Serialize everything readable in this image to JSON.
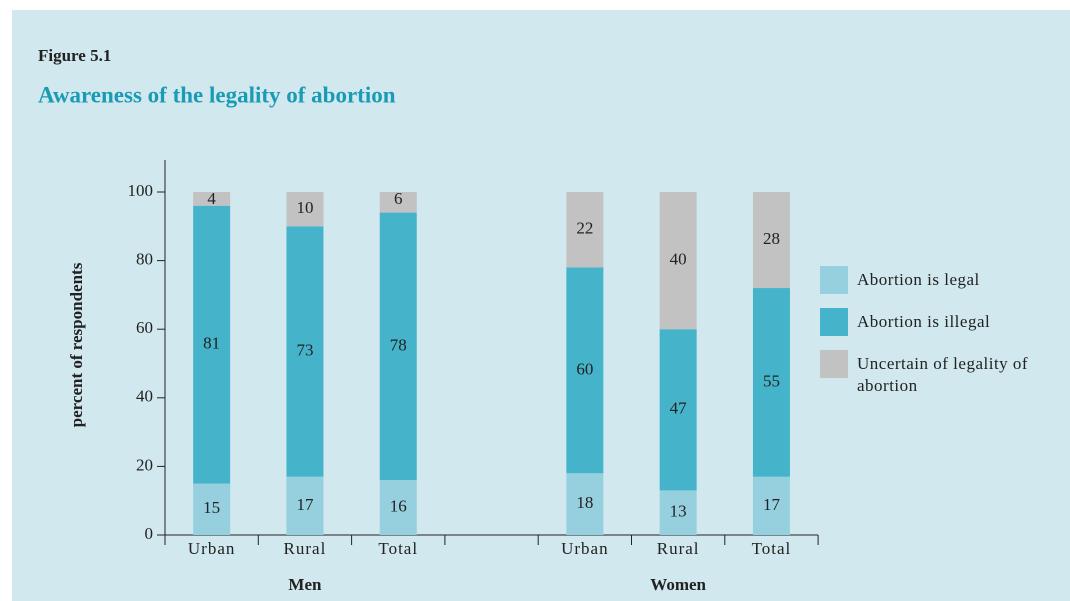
{
  "chart_data": {
    "type": "stacked_bar",
    "figure_label": "Figure 5.1",
    "title": "Awareness of the legality of abortion",
    "y_label": "percent of respondents",
    "categories": [
      "Urban",
      "Rural",
      "Total",
      null,
      "Urban",
      "Rural",
      "Total"
    ],
    "group_labels": [
      "Men",
      "Women"
    ],
    "series": [
      {
        "name": "Abortion is legal",
        "color": "#96d0de",
        "values": [
          15,
          17,
          16,
          null,
          18,
          13,
          17
        ]
      },
      {
        "name": "Abortion is illegal",
        "color": "#45b3c9",
        "values": [
          81,
          73,
          78,
          null,
          60,
          47,
          55
        ]
      },
      {
        "name": "Uncertain of legality of abortion",
        "color": "#c2c2c2",
        "values": [
          4,
          10,
          6,
          null,
          22,
          40,
          28
        ]
      }
    ],
    "ylim": [
      0,
      100
    ],
    "yticks": [
      0,
      20,
      40,
      60,
      80,
      100
    ]
  }
}
